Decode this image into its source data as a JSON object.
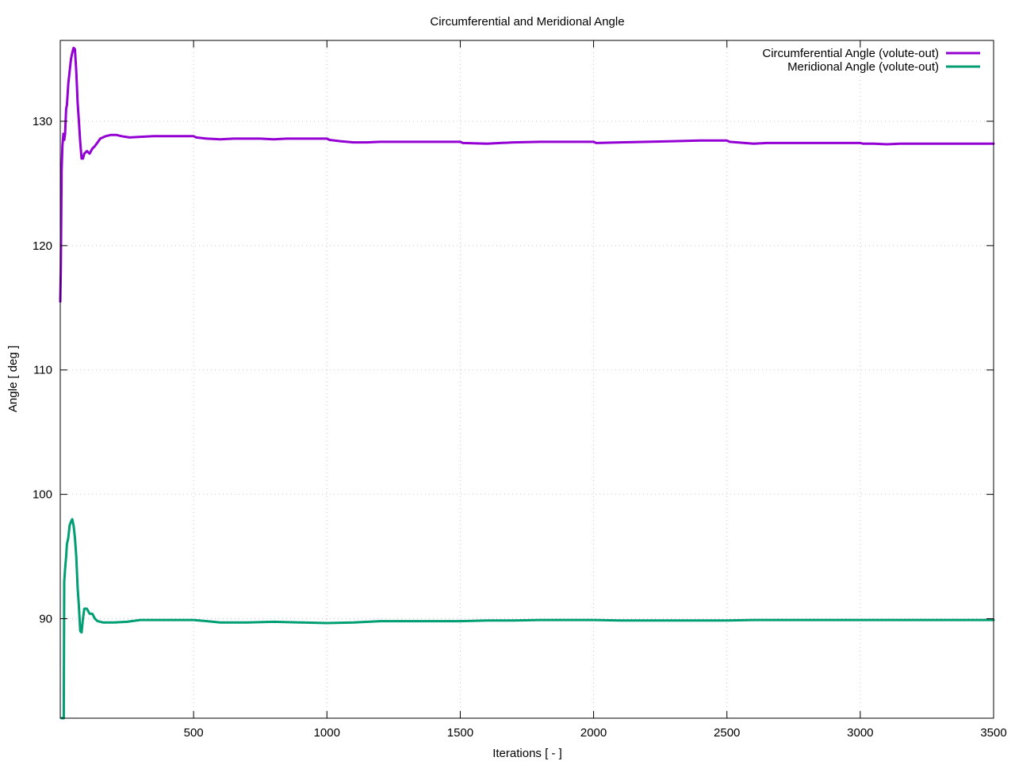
{
  "chart_data": {
    "type": "line",
    "title": "Circumferential and Meridional Angle",
    "xlabel": "Iterations [ - ]",
    "ylabel": "Angle [ deg ]",
    "xlim": [
      0,
      3500
    ],
    "ylim": [
      82,
      136.5
    ],
    "x_ticks": [
      500,
      1000,
      1500,
      2000,
      2500,
      3000,
      3500
    ],
    "y_ticks": [
      90,
      100,
      110,
      120,
      130
    ],
    "grid": true,
    "legend_position": "top-right",
    "series": [
      {
        "name": "Circumferential Angle (volute-out)",
        "color": "#9400d3",
        "points": [
          [
            0,
            115.5
          ],
          [
            2,
            118
          ],
          [
            5,
            126
          ],
          [
            8,
            128
          ],
          [
            12,
            129
          ],
          [
            15,
            128.5
          ],
          [
            18,
            129
          ],
          [
            22,
            131
          ],
          [
            25,
            131.3
          ],
          [
            30,
            133
          ],
          [
            35,
            134
          ],
          [
            40,
            135
          ],
          [
            45,
            135.5
          ],
          [
            50,
            135.9
          ],
          [
            55,
            135.8
          ],
          [
            60,
            134
          ],
          [
            65,
            131.5
          ],
          [
            70,
            130
          ],
          [
            75,
            128.3
          ],
          [
            80,
            127
          ],
          [
            85,
            127
          ],
          [
            90,
            127.4
          ],
          [
            100,
            127.6
          ],
          [
            110,
            127.4
          ],
          [
            120,
            127.8
          ],
          [
            130,
            128
          ],
          [
            140,
            128.3
          ],
          [
            150,
            128.6
          ],
          [
            170,
            128.8
          ],
          [
            190,
            128.9
          ],
          [
            210,
            128.9
          ],
          [
            230,
            128.8
          ],
          [
            260,
            128.7
          ],
          [
            300,
            128.75
          ],
          [
            350,
            128.8
          ],
          [
            400,
            128.8
          ],
          [
            450,
            128.8
          ],
          [
            500,
            128.8
          ],
          [
            510,
            128.7
          ],
          [
            550,
            128.6
          ],
          [
            600,
            128.55
          ],
          [
            650,
            128.6
          ],
          [
            700,
            128.6
          ],
          [
            750,
            128.6
          ],
          [
            800,
            128.55
          ],
          [
            850,
            128.6
          ],
          [
            900,
            128.6
          ],
          [
            950,
            128.6
          ],
          [
            1000,
            128.6
          ],
          [
            1010,
            128.5
          ],
          [
            1050,
            128.4
          ],
          [
            1100,
            128.3
          ],
          [
            1150,
            128.3
          ],
          [
            1200,
            128.35
          ],
          [
            1300,
            128.35
          ],
          [
            1400,
            128.35
          ],
          [
            1500,
            128.35
          ],
          [
            1510,
            128.25
          ],
          [
            1600,
            128.2
          ],
          [
            1700,
            128.3
          ],
          [
            1800,
            128.35
          ],
          [
            1900,
            128.35
          ],
          [
            2000,
            128.35
          ],
          [
            2010,
            128.25
          ],
          [
            2100,
            128.3
          ],
          [
            2200,
            128.35
          ],
          [
            2300,
            128.4
          ],
          [
            2400,
            128.45
          ],
          [
            2500,
            128.45
          ],
          [
            2510,
            128.35
          ],
          [
            2600,
            128.2
          ],
          [
            2650,
            128.25
          ],
          [
            2700,
            128.25
          ],
          [
            2800,
            128.25
          ],
          [
            2900,
            128.25
          ],
          [
            3000,
            128.25
          ],
          [
            3010,
            128.2
          ],
          [
            3050,
            128.2
          ],
          [
            3100,
            128.15
          ],
          [
            3150,
            128.2
          ],
          [
            3200,
            128.2
          ],
          [
            3300,
            128.2
          ],
          [
            3400,
            128.2
          ],
          [
            3500,
            128.2
          ]
        ]
      },
      {
        "name": "Meridional Angle (volute-out)",
        "color": "#009e73",
        "points": [
          [
            5,
            82
          ],
          [
            10,
            82
          ],
          [
            13,
            82
          ],
          [
            15,
            93
          ],
          [
            18,
            94
          ],
          [
            22,
            95
          ],
          [
            25,
            96
          ],
          [
            30,
            96.5
          ],
          [
            35,
            97.5
          ],
          [
            40,
            97.8
          ],
          [
            45,
            98
          ],
          [
            50,
            97.5
          ],
          [
            55,
            96.5
          ],
          [
            60,
            95
          ],
          [
            65,
            92.5
          ],
          [
            70,
            91
          ],
          [
            75,
            89
          ],
          [
            80,
            88.9
          ],
          [
            85,
            90
          ],
          [
            90,
            90.8
          ],
          [
            100,
            90.8
          ],
          [
            110,
            90.4
          ],
          [
            120,
            90.4
          ],
          [
            130,
            90
          ],
          [
            140,
            89.8
          ],
          [
            160,
            89.7
          ],
          [
            200,
            89.7
          ],
          [
            250,
            89.75
          ],
          [
            300,
            89.9
          ],
          [
            350,
            89.9
          ],
          [
            400,
            89.9
          ],
          [
            450,
            89.9
          ],
          [
            500,
            89.9
          ],
          [
            550,
            89.8
          ],
          [
            600,
            89.7
          ],
          [
            700,
            89.7
          ],
          [
            800,
            89.75
          ],
          [
            900,
            89.7
          ],
          [
            1000,
            89.65
          ],
          [
            1100,
            89.7
          ],
          [
            1200,
            89.8
          ],
          [
            1300,
            89.8
          ],
          [
            1400,
            89.8
          ],
          [
            1500,
            89.8
          ],
          [
            1600,
            89.85
          ],
          [
            1700,
            89.85
          ],
          [
            1800,
            89.9
          ],
          [
            1900,
            89.9
          ],
          [
            2000,
            89.9
          ],
          [
            2100,
            89.85
          ],
          [
            2200,
            89.85
          ],
          [
            2300,
            89.85
          ],
          [
            2400,
            89.85
          ],
          [
            2500,
            89.85
          ],
          [
            2600,
            89.9
          ],
          [
            2700,
            89.9
          ],
          [
            2800,
            89.9
          ],
          [
            2900,
            89.9
          ],
          [
            3000,
            89.9
          ],
          [
            3100,
            89.9
          ],
          [
            3200,
            89.9
          ],
          [
            3300,
            89.9
          ],
          [
            3400,
            89.9
          ],
          [
            3500,
            89.9
          ]
        ]
      }
    ]
  }
}
